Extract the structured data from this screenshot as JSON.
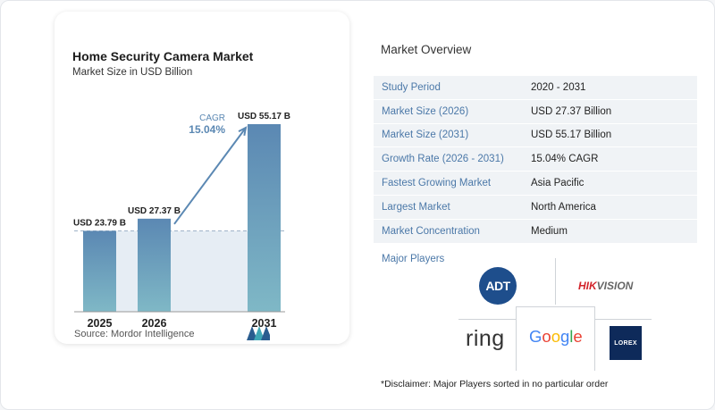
{
  "chart_data": {
    "type": "bar",
    "title": "Home Security Camera Market",
    "subtitle": "Market Size in USD Billion",
    "categories": [
      "2025",
      "2026",
      "2031"
    ],
    "values": [
      23.79,
      27.37,
      55.17
    ],
    "value_labels": [
      "USD 23.79 B",
      "USD 27.37 B",
      "USD 55.17 B"
    ],
    "annotation": {
      "label": "CAGR",
      "value": "15.04%"
    },
    "colors": {
      "bar_top": "#5b88b3",
      "bar_bottom": "#7fb8c6",
      "band": "#e6edf4",
      "arrow": "#5b88b3",
      "dash": "#9fb3c8"
    },
    "ylim": [
      0,
      60
    ]
  },
  "source": "Source:  Mordor Intelligence",
  "overview": {
    "title": "Market Overview",
    "rows": [
      {
        "label": "Study Period",
        "value": "2020 - 2031"
      },
      {
        "label": "Market Size (2026)",
        "value": "USD 27.37 Billion"
      },
      {
        "label": "Market Size (2031)",
        "value": "USD 55.17 Billion"
      },
      {
        "label": "Growth Rate (2026 - 2031)",
        "value": "15.04% CAGR"
      },
      {
        "label": "Fastest Growing Market",
        "value": "Asia Pacific"
      },
      {
        "label": "Largest Market",
        "value": "North America"
      },
      {
        "label": "Market Concentration",
        "value": "Medium"
      }
    ]
  },
  "players": {
    "title": "Major Players",
    "adt": "ADT",
    "hikvision_red": "HIK",
    "hikvision_grey": "VISION",
    "ring": "ring",
    "google": [
      "G",
      "o",
      "o",
      "g",
      "l",
      "e"
    ],
    "google_colors": [
      "#4285f4",
      "#ea4335",
      "#fbbc05",
      "#4285f4",
      "#34a853",
      "#ea4335"
    ],
    "lorex": "LOREX"
  },
  "disclaimer": "*Disclaimer: Major Players sorted in no particular order"
}
